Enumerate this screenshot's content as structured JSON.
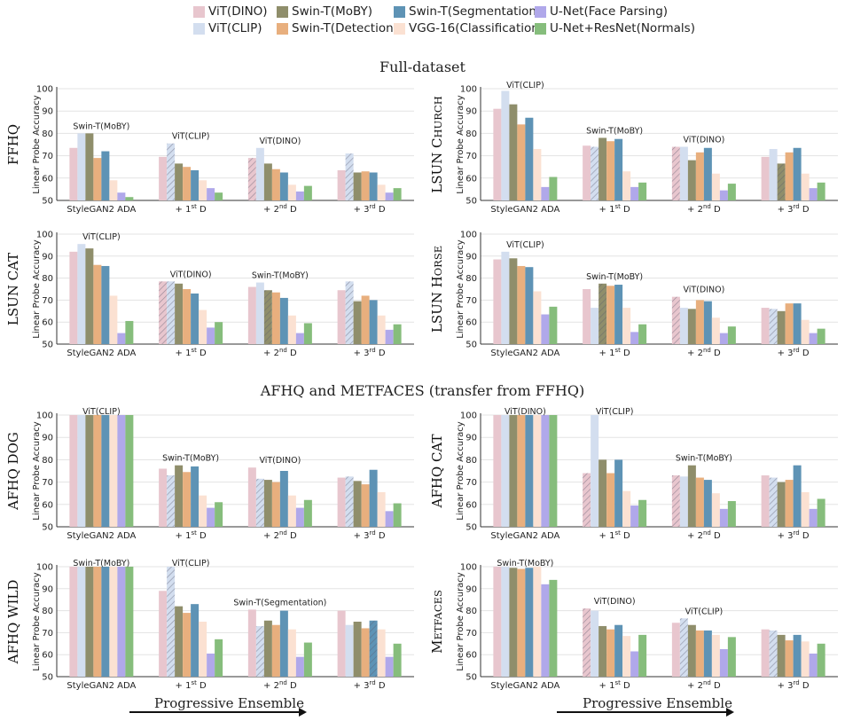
{
  "legend": [
    {
      "name": "ViT(DINO)",
      "color": "#E8C6CE"
    },
    {
      "name": "ViT(CLIP)",
      "color": "#D3DEEF"
    },
    {
      "name": "Swin-T(MoBY)",
      "color": "#8F8E6B"
    },
    {
      "name": "Swin-T(Detection)",
      "color": "#E8AF7E"
    },
    {
      "name": "Swin-T(Segmentation)",
      "color": "#5E93B5"
    },
    {
      "name": "VGG-16(Classification)",
      "color": "#FBE1D2"
    },
    {
      "name": "U-Net(Face Parsing)",
      "color": "#B0A8EA"
    },
    {
      "name": "U-Net+ResNet(Normals)",
      "color": "#86BD7C"
    }
  ],
  "section_titles": [
    "Full-dataset",
    "AFHQ and METFACES (transfer from FFHQ)"
  ],
  "ensemble_label": "Progressive Ensemble",
  "chart_data": [
    {
      "type": "bar",
      "dataset": "FFHQ",
      "ylabel": "Linear Probe Accuracy",
      "ylim": [
        50,
        100
      ],
      "yticks": [
        50,
        60,
        70,
        80,
        90,
        100
      ],
      "categories": [
        "StyleGAN2 ADA",
        "+ 1st D",
        "+ 2nd D",
        "+ 3rd D"
      ],
      "values": [
        [
          73.5,
          80,
          80,
          69,
          72,
          59,
          53.5,
          51.5
        ],
        [
          69.5,
          75.5,
          66.5,
          65,
          63.5,
          59,
          55.5,
          53.5
        ],
        [
          69,
          73.5,
          66.5,
          64,
          62.5,
          57,
          54,
          56.5
        ],
        [
          63.5,
          71,
          62.5,
          63,
          62.5,
          57,
          53.5,
          55.5
        ]
      ],
      "hatched": [
        [],
        [
          1
        ],
        [
          0
        ],
        [
          1
        ]
      ],
      "annotations": [
        {
          "group": 0,
          "text": "Swin-T(MoBY)"
        },
        {
          "group": 1,
          "text": "ViT(CLIP)"
        },
        {
          "group": 2,
          "text": "ViT(DINO)"
        }
      ]
    },
    {
      "type": "bar",
      "dataset": "LSUN CHURCH",
      "ylabel": "Linear Probe Accuracy",
      "ylim": [
        50,
        100
      ],
      "yticks": [
        50,
        60,
        70,
        80,
        90,
        100
      ],
      "categories": [
        "StyleGAN2 ADA",
        "+ 1st D",
        "+ 2nd D",
        "+ 3rd D"
      ],
      "values": [
        [
          91,
          99,
          93,
          84,
          87,
          73,
          56,
          60.5
        ],
        [
          74.5,
          74,
          78,
          76.5,
          77.5,
          63,
          56,
          58
        ],
        [
          74,
          74,
          68,
          71.5,
          73.5,
          62,
          54.5,
          57.5
        ],
        [
          69.5,
          73,
          66.5,
          71.5,
          73.5,
          62,
          55.5,
          58
        ]
      ],
      "hatched": [
        [],
        [
          1
        ],
        [
          0
        ],
        [
          2
        ]
      ],
      "annotations": [
        {
          "group": 0,
          "text": "ViT(CLIP)"
        },
        {
          "group": 1,
          "text": "Swin-T(MoBY)"
        },
        {
          "group": 2,
          "text": "ViT(DINO)"
        }
      ]
    },
    {
      "type": "bar",
      "dataset": "LSUN CAT",
      "ylabel": "Linear Probe Accuracy",
      "ylim": [
        50,
        100
      ],
      "yticks": [
        50,
        60,
        70,
        80,
        90,
        100
      ],
      "categories": [
        "StyleGAN2 ADA",
        "+ 1st D",
        "+ 2nd D",
        "+ 3rd D"
      ],
      "values": [
        [
          92,
          95.5,
          93.5,
          86,
          85.5,
          72,
          55,
          60.5
        ],
        [
          78.5,
          78.5,
          77.5,
          75,
          73,
          65.5,
          57.5,
          60
        ],
        [
          76,
          78,
          74.5,
          73.5,
          71,
          63,
          55,
          59.5
        ],
        [
          74.5,
          78.5,
          69.5,
          72,
          70,
          63,
          56.5,
          59
        ]
      ],
      "hatched": [
        [],
        [
          0,
          1
        ],
        [
          2
        ],
        [
          1
        ]
      ],
      "annotations": [
        {
          "group": 0,
          "text": "ViT(CLIP)"
        },
        {
          "group": 1,
          "text": "ViT(DINO)"
        },
        {
          "group": 2,
          "text": "Swin-T(MoBY)"
        }
      ]
    },
    {
      "type": "bar",
      "dataset": "LSUN HORSE",
      "ylabel": "Linear Probe Accuracy",
      "ylim": [
        50,
        100
      ],
      "yticks": [
        50,
        60,
        70,
        80,
        90,
        100
      ],
      "categories": [
        "StyleGAN2 ADA",
        "+ 1st D",
        "+ 2nd D",
        "+ 3rd D"
      ],
      "values": [
        [
          88.5,
          92,
          89,
          85.5,
          85,
          74,
          63.5,
          67
        ],
        [
          75,
          66.5,
          77.5,
          76.5,
          77,
          66.5,
          55.5,
          59
        ],
        [
          71.5,
          66.5,
          66,
          70,
          69.5,
          62,
          55,
          58
        ],
        [
          66.5,
          66,
          65,
          68.5,
          68.5,
          61,
          55,
          57
        ]
      ],
      "hatched": [
        [],
        [
          2
        ],
        [
          0
        ],
        [
          1
        ]
      ],
      "annotations": [
        {
          "group": 0,
          "text": "ViT(CLIP)"
        },
        {
          "group": 1,
          "text": "Swin-T(MoBY)"
        },
        {
          "group": 2,
          "text": "ViT(DINO)"
        }
      ]
    },
    {
      "type": "bar",
      "dataset": "AFHQ DOG",
      "ylabel": "Linear Probe Accuracy",
      "ylim": [
        50,
        100
      ],
      "yticks": [
        50,
        60,
        70,
        80,
        90,
        100
      ],
      "categories": [
        "StyleGAN2 ADA",
        "+ 1st D",
        "+ 2nd D",
        "+ 3rd D"
      ],
      "values": [
        [
          100,
          100,
          100,
          100,
          100,
          100,
          100,
          100
        ],
        [
          76,
          73,
          77.5,
          74.5,
          77,
          64,
          58.5,
          61
        ],
        [
          76.5,
          71.5,
          71,
          70,
          75,
          64,
          58.5,
          62
        ],
        [
          72,
          72.5,
          70.5,
          69,
          75.5,
          65.5,
          57,
          60.5
        ]
      ],
      "hatched": [
        [],
        [
          1
        ],
        [
          1
        ],
        [
          1
        ]
      ],
      "annotations": [
        {
          "group": 0,
          "text": "ViT(CLIP)"
        },
        {
          "group": 1,
          "text": "Swin-T(MoBY)"
        },
        {
          "group": 2,
          "text": "ViT(DINO)"
        }
      ]
    },
    {
      "type": "bar",
      "dataset": "AFHQ CAT",
      "ylabel": "Linear Probe Accuracy",
      "ylim": [
        50,
        100
      ],
      "yticks": [
        50,
        60,
        70,
        80,
        90,
        100
      ],
      "categories": [
        "StyleGAN2 ADA",
        "+ 1st D",
        "+ 2nd D",
        "+ 3rd D"
      ],
      "values": [
        [
          100,
          100,
          100,
          100,
          100,
          100,
          100,
          100
        ],
        [
          74,
          100,
          80,
          74,
          80,
          66,
          59.5,
          62
        ],
        [
          73,
          72.5,
          77.5,
          72,
          71,
          65,
          58,
          61.5
        ],
        [
          73,
          72,
          70,
          71,
          77.5,
          65.5,
          58,
          62.5
        ]
      ],
      "hatched": [
        [],
        [
          0
        ],
        [
          0
        ],
        [
          1
        ]
      ],
      "annotations": [
        {
          "group": 0,
          "text": "ViT(DINO)"
        },
        {
          "group": 1,
          "text": "ViT(CLIP)"
        },
        {
          "group": 2,
          "text": "Swin-T(MoBY)"
        }
      ]
    },
    {
      "type": "bar",
      "dataset": "AFHQ WILD",
      "ylabel": "Linear Probe Accuracy",
      "ylim": [
        50,
        100
      ],
      "yticks": [
        50,
        60,
        70,
        80,
        90,
        100
      ],
      "categories": [
        "StyleGAN2 ADA",
        "+ 1st D",
        "+ 2nd D",
        "+ 3rd D"
      ],
      "values": [
        [
          100,
          100,
          100,
          100,
          100,
          100,
          100,
          100
        ],
        [
          89,
          100,
          82,
          79,
          83,
          75,
          60.5,
          67
        ],
        [
          80.5,
          73,
          75.5,
          73.5,
          80,
          71.5,
          59,
          65.5
        ],
        [
          80,
          73.5,
          75,
          72,
          75.5,
          71.5,
          59,
          65
        ]
      ],
      "hatched": [
        [],
        [
          1
        ],
        [
          1
        ],
        [
          4
        ]
      ],
      "annotations": [
        {
          "group": 0,
          "text": "Swin-T(MoBY)"
        },
        {
          "group": 1,
          "text": "ViT(CLIP)"
        },
        {
          "group": 2,
          "text": "Swin-T(Segmentation)"
        }
      ]
    },
    {
      "type": "bar",
      "dataset": "METFACES",
      "ylabel": "Linear Probe Accuracy",
      "ylim": [
        50,
        100
      ],
      "yticks": [
        50,
        60,
        70,
        80,
        90,
        100
      ],
      "categories": [
        "StyleGAN2 ADA",
        "+ 1st D",
        "+ 2nd D",
        "+ 3rd D"
      ],
      "values": [
        [
          100,
          100,
          99.5,
          99,
          99.5,
          100,
          92,
          94
        ],
        [
          81,
          80,
          73,
          71.5,
          73.5,
          68.5,
          61.5,
          69
        ],
        [
          74.5,
          76.5,
          73.5,
          71,
          71,
          69,
          62.5,
          68
        ],
        [
          71.5,
          71,
          69,
          66.5,
          69,
          66,
          60.5,
          65
        ]
      ],
      "hatched": [
        [],
        [
          0
        ],
        [
          1
        ],
        [
          1
        ]
      ],
      "annotations": [
        {
          "group": 0,
          "text": "Swin-T(MoBY)"
        },
        {
          "group": 1,
          "text": "ViT(DINO)"
        },
        {
          "group": 2,
          "text": "ViT(CLIP)"
        }
      ]
    }
  ]
}
